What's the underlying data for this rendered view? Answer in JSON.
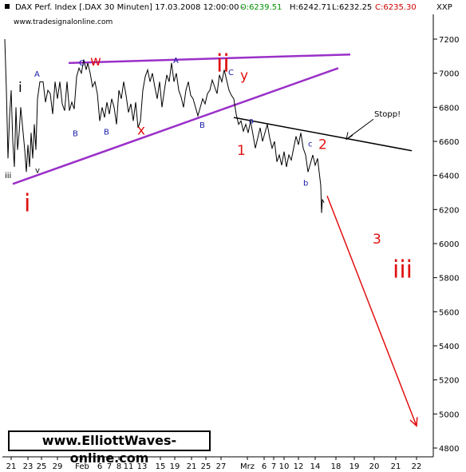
{
  "header": {
    "instrument": "DAX Perf. Index [.DAX  30 Minuten] 17.03.2008 12:00:00 - ",
    "open": "O:6239.51",
    "high": "H:6242.71",
    "low": "L:6232.25",
    "close": "C:6235.30",
    "y_axis_label": "XXP",
    "website": "www.tradesignalonline.com"
  },
  "watermark": "www.ElliottWaves-online.com",
  "colors": {
    "price": "#000000",
    "channel": "#9a30c8",
    "resistance": "#000000",
    "forecast": "#e01010",
    "wave_red": "#e01010",
    "wave_blue": "#1a1aa8",
    "header_high": "#000000",
    "header_close": "#d00000",
    "header_open": "#009000"
  },
  "chart_data": {
    "type": "line",
    "title": "DAX Perf. Index [.DAX  30 Minuten] 17.03.2008 12:00:00",
    "ylabel": "XXP",
    "ylim": [
      4750,
      7250
    ],
    "y_ticks": [
      4800,
      5000,
      5200,
      5400,
      5600,
      5800,
      6000,
      6200,
      6400,
      6600,
      6800,
      7000,
      7200
    ],
    "x_ticks": [
      "21",
      "23",
      "25",
      "29",
      "Feb",
      "6",
      "7",
      "8",
      "11",
      "13",
      "15",
      "19",
      "21",
      "25",
      "27",
      "Mrz",
      "6",
      "7",
      "10",
      "12",
      "14",
      "18",
      "19",
      "20",
      "21",
      "22"
    ],
    "grid": false,
    "series": [
      {
        "name": "",
        "type": "price",
        "points": [
          [
            0,
            7200
          ],
          [
            2,
            6900
          ],
          [
            4,
            6500
          ],
          [
            6,
            6750
          ],
          [
            8,
            6900
          ],
          [
            10,
            6600
          ],
          [
            12,
            6450
          ],
          [
            14,
            6800
          ],
          [
            16,
            6550
          ],
          [
            18,
            6650
          ],
          [
            20,
            6800
          ],
          [
            22,
            6700
          ],
          [
            25,
            6550
          ],
          [
            27,
            6420
          ],
          [
            29,
            6580
          ],
          [
            31,
            6450
          ],
          [
            33,
            6650
          ],
          [
            35,
            6500
          ],
          [
            37,
            6700
          ],
          [
            39,
            6550
          ],
          [
            41,
            6850
          ],
          [
            44,
            6950
          ],
          [
            48,
            6950
          ],
          [
            51,
            6830
          ],
          [
            54,
            6900
          ],
          [
            57,
            6880
          ],
          [
            60,
            6760
          ],
          [
            63,
            6950
          ],
          [
            66,
            6850
          ],
          [
            69,
            6950
          ],
          [
            72,
            6820
          ],
          [
            75,
            6780
          ],
          [
            78,
            6950
          ],
          [
            81,
            6780
          ],
          [
            84,
            6830
          ],
          [
            87,
            6790
          ],
          [
            90,
            6980
          ],
          [
            93,
            7030
          ],
          [
            96,
            7000
          ],
          [
            99,
            7080
          ],
          [
            102,
            7020
          ],
          [
            104,
            7060
          ],
          [
            107,
            7000
          ],
          [
            110,
            6920
          ],
          [
            113,
            6950
          ],
          [
            116,
            6880
          ],
          [
            119,
            6720
          ],
          [
            122,
            6800
          ],
          [
            125,
            6740
          ],
          [
            128,
            6830
          ],
          [
            131,
            6760
          ],
          [
            134,
            6850
          ],
          [
            137,
            6800
          ],
          [
            140,
            6700
          ],
          [
            143,
            6900
          ],
          [
            146,
            6850
          ],
          [
            149,
            6950
          ],
          [
            152,
            6870
          ],
          [
            155,
            6770
          ],
          [
            158,
            6820
          ],
          [
            161,
            6720
          ],
          [
            164,
            6830
          ],
          [
            167,
            6680
          ],
          [
            170,
            6720
          ],
          [
            173,
            6900
          ],
          [
            176,
            6980
          ],
          [
            179,
            7020
          ],
          [
            182,
            6950
          ],
          [
            185,
            7000
          ],
          [
            188,
            6920
          ],
          [
            191,
            6850
          ],
          [
            194,
            6950
          ],
          [
            197,
            6800
          ],
          [
            200,
            6900
          ],
          [
            203,
            6990
          ],
          [
            206,
            6950
          ],
          [
            209,
            7060
          ],
          [
            212,
            6950
          ],
          [
            215,
            7000
          ],
          [
            218,
            6900
          ],
          [
            221,
            6860
          ],
          [
            224,
            6800
          ],
          [
            227,
            6900
          ],
          [
            230,
            6950
          ],
          [
            233,
            6870
          ],
          [
            236,
            6850
          ],
          [
            239,
            6800
          ],
          [
            242,
            6750
          ],
          [
            245,
            6800
          ],
          [
            248,
            6850
          ],
          [
            251,
            6820
          ],
          [
            254,
            6880
          ],
          [
            257,
            6900
          ],
          [
            260,
            6960
          ],
          [
            263,
            6920
          ],
          [
            266,
            6880
          ],
          [
            269,
            6990
          ],
          [
            272,
            6950
          ],
          [
            275,
            7020
          ],
          [
            278,
            6960
          ],
          [
            281,
            6900
          ],
          [
            284,
            6870
          ],
          [
            287,
            6850
          ],
          [
            290,
            6760
          ],
          [
            293,
            6700
          ],
          [
            296,
            6720
          ],
          [
            299,
            6660
          ],
          [
            302,
            6700
          ],
          [
            305,
            6650
          ],
          [
            308,
            6720
          ],
          [
            311,
            6640
          ],
          [
            314,
            6560
          ],
          [
            317,
            6620
          ],
          [
            320,
            6680
          ],
          [
            323,
            6600
          ],
          [
            326,
            6650
          ],
          [
            329,
            6700
          ],
          [
            332,
            6620
          ],
          [
            335,
            6560
          ],
          [
            338,
            6600
          ],
          [
            341,
            6480
          ],
          [
            344,
            6520
          ],
          [
            347,
            6460
          ],
          [
            350,
            6540
          ],
          [
            353,
            6450
          ],
          [
            356,
            6520
          ],
          [
            359,
            6490
          ],
          [
            362,
            6560
          ],
          [
            365,
            6630
          ],
          [
            368,
            6580
          ],
          [
            371,
            6650
          ],
          [
            374,
            6560
          ],
          [
            377,
            6520
          ],
          [
            380,
            6420
          ],
          [
            383,
            6470
          ],
          [
            386,
            6520
          ],
          [
            389,
            6460
          ],
          [
            392,
            6500
          ],
          [
            394,
            6420
          ],
          [
            396,
            6340
          ],
          [
            397,
            6180
          ],
          [
            398,
            6260
          ],
          [
            399,
            6250
          ],
          [
            400,
            6240
          ]
        ]
      }
    ],
    "lines": [
      {
        "name": "upper-channel",
        "from": [
          80,
          7060
        ],
        "to": [
          433,
          7110
        ]
      },
      {
        "name": "lower-trendline",
        "from": [
          10,
          6350
        ],
        "to": [
          418,
          7030
        ]
      },
      {
        "name": "resistance",
        "from": [
          287,
          6740
        ],
        "to": [
          510,
          6545
        ]
      },
      {
        "name": "forecast",
        "from": [
          404,
          6280
        ],
        "to": [
          516,
          4930
        ]
      }
    ],
    "annotations": [
      {
        "text": "Stopp!",
        "color": "black",
        "size": "small",
        "at": [
          463,
          6745
        ]
      },
      {
        "text": "iii",
        "color": "black",
        "size": "small",
        "at": [
          0,
          6385
        ]
      },
      {
        "text": "i",
        "color": "red",
        "size": "large",
        "at": [
          24,
          6190
        ]
      },
      {
        "text": "i",
        "color": "black",
        "size": "medium",
        "at": [
          17,
          6890
        ]
      },
      {
        "text": "v",
        "color": "black",
        "size": "small",
        "at": [
          38,
          6415
        ]
      },
      {
        "text": "A",
        "color": "blue",
        "size": "small",
        "at": [
          37,
          6980
        ]
      },
      {
        "text": "B",
        "color": "blue",
        "size": "small",
        "at": [
          85,
          6630
        ]
      },
      {
        "text": "C",
        "color": "blue",
        "size": "small",
        "at": [
          93,
          7045
        ]
      },
      {
        "text": "w",
        "color": "red",
        "size": "medium",
        "at": [
          107,
          7045
        ]
      },
      {
        "text": "B",
        "color": "blue",
        "size": "small",
        "at": [
          124,
          6640
        ]
      },
      {
        "text": "x",
        "color": "red",
        "size": "medium",
        "at": [
          166,
          6640
        ]
      },
      {
        "text": "A",
        "color": "blue",
        "size": "small",
        "at": [
          211,
          7060
        ]
      },
      {
        "text": "B",
        "color": "blue",
        "size": "small",
        "at": [
          244,
          6680
        ]
      },
      {
        "text": "ii",
        "color": "red",
        "size": "large",
        "at": [
          265,
          7010
        ]
      },
      {
        "text": "C",
        "color": "blue",
        "size": "small",
        "at": [
          280,
          6990
        ]
      },
      {
        "text": "y",
        "color": "red",
        "size": "medium",
        "at": [
          295,
          6960
        ]
      },
      {
        "text": "1",
        "color": "red",
        "size": "medium",
        "at": [
          291,
          6520
        ]
      },
      {
        "text": "a",
        "color": "blue",
        "size": "small",
        "at": [
          306,
          6705
        ]
      },
      {
        "text": "c",
        "color": "blue",
        "size": "small",
        "at": [
          380,
          6570
        ]
      },
      {
        "text": "2",
        "color": "red",
        "size": "medium",
        "at": [
          393,
          6555
        ]
      },
      {
        "text": "b",
        "color": "blue",
        "size": "small",
        "at": [
          374,
          6340
        ]
      },
      {
        "text": "3",
        "color": "red",
        "size": "medium",
        "at": [
          461,
          6000
        ]
      },
      {
        "text": "iii",
        "color": "red",
        "size": "large",
        "at": [
          486,
          5800
        ]
      }
    ]
  }
}
